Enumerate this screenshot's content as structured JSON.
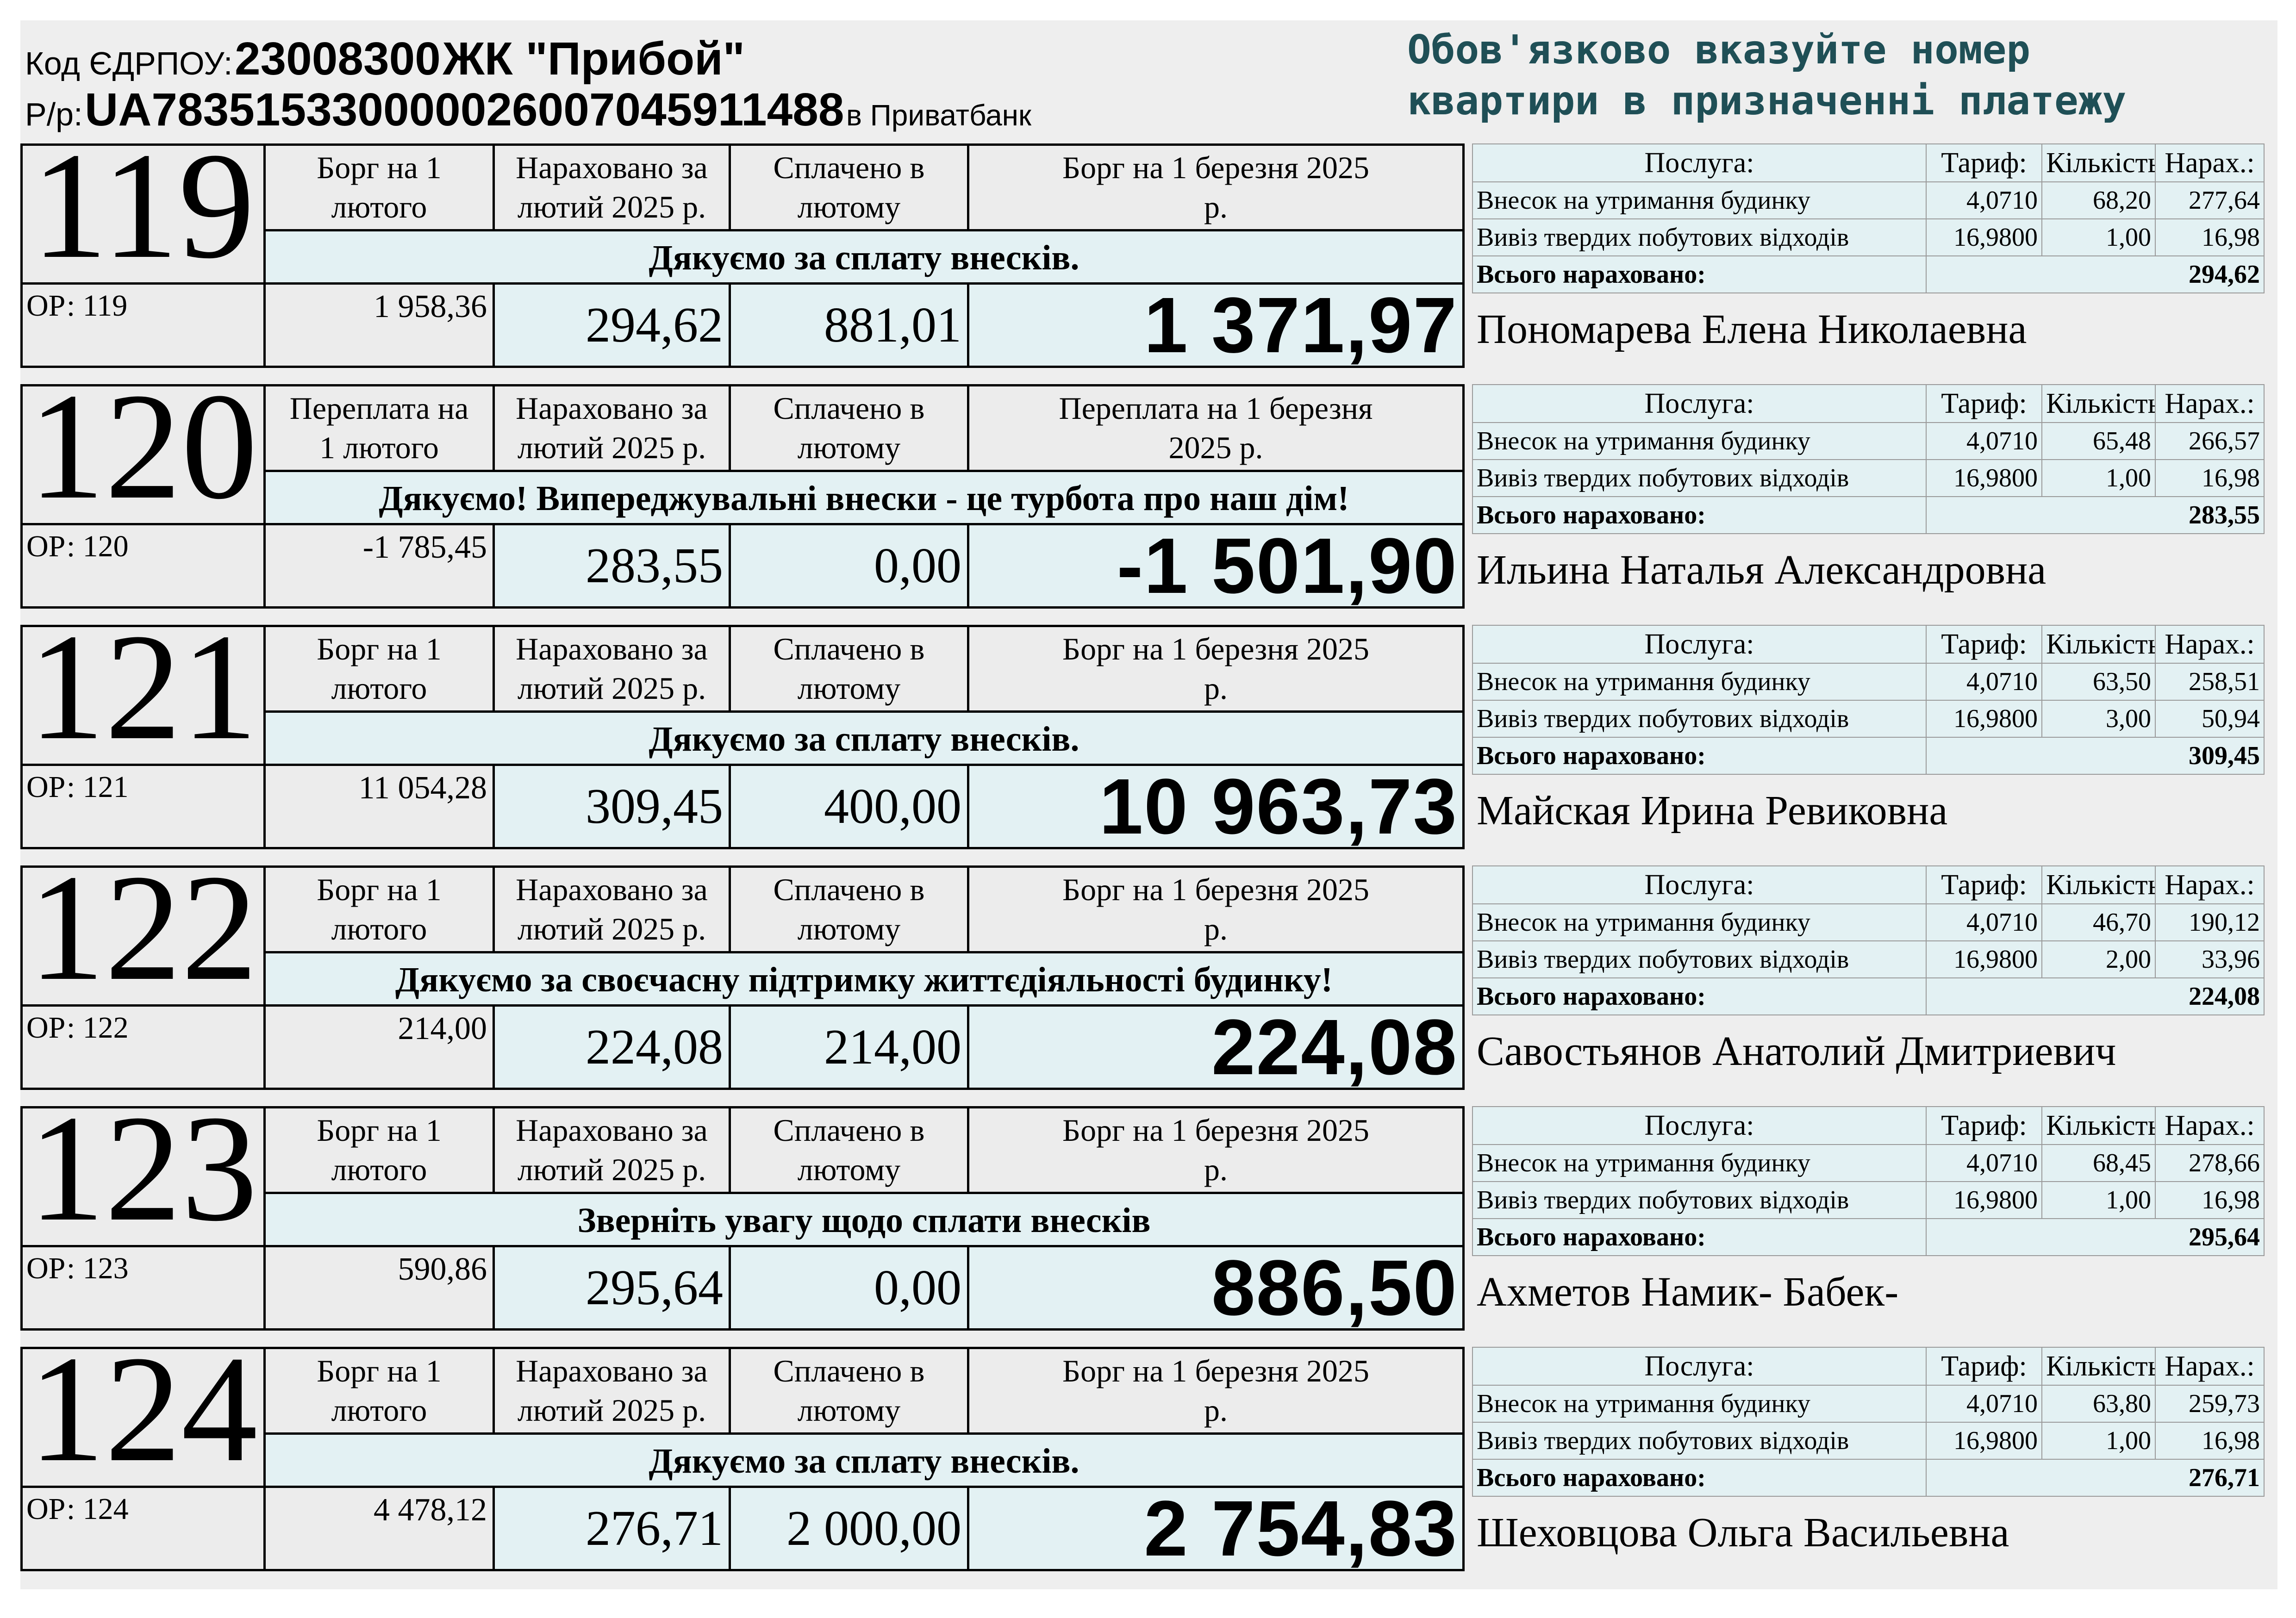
{
  "header": {
    "code_label": "Код ЄДРПОУ:",
    "code_value": "23008300",
    "org_name": "ЖК \"Прибой\"",
    "account_label": "Р/р:",
    "account_value": "UA783515330000026007045911488",
    "bank": "в Приватбанк",
    "notice_line1": "Обов'язково вказуйте номер",
    "notice_line2": "квартири в призначенні платежу"
  },
  "columns": {
    "charged": "Нараховано за лютий 2025 р.",
    "paid": "Сплачено в лютому"
  },
  "services_header": {
    "service": "Послуга:",
    "tariff": "Тариф:",
    "quantity": "Кількість:",
    "charge": "Нарах.:",
    "total_label": "Всього нараховано:"
  },
  "apartments": [
    {
      "number": "119",
      "op": "ОР: 119",
      "start_label": "Борг на 1 лютого",
      "end_label": "Борг на 1 березня 2025 р.",
      "message": "Дякуємо за сплату внесків.",
      "start_balance": "1 958,36",
      "charged": "294,62",
      "paid": "881,01",
      "end_balance": "1 371,97",
      "services": [
        {
          "name": "Внесок на утримання будинку",
          "tariff": "4,0710",
          "qty": "68,20",
          "sum": "277,64"
        },
        {
          "name": "Вивіз твердих побутових відходів",
          "tariff": "16,9800",
          "qty": "1,00",
          "sum": "16,98"
        }
      ],
      "total": "294,62",
      "owner": "Пономарева Елена Николаевна"
    },
    {
      "number": "120",
      "op": "ОР: 120",
      "start_label": "Переплата на 1 лютого",
      "end_label": "Переплата на 1 березня 2025 р.",
      "message": "Дякуємо! Випереджувальні внески - це турбота про наш дім!",
      "start_balance": "-1 785,45",
      "charged": "283,55",
      "paid": "0,00",
      "end_balance": "-1 501,90",
      "services": [
        {
          "name": "Внесок на утримання будинку",
          "tariff": "4,0710",
          "qty": "65,48",
          "sum": "266,57"
        },
        {
          "name": "Вивіз твердих побутових відходів",
          "tariff": "16,9800",
          "qty": "1,00",
          "sum": "16,98"
        }
      ],
      "total": "283,55",
      "owner": "Ильина Наталья Александровна"
    },
    {
      "number": "121",
      "op": "ОР: 121",
      "start_label": "Борг на 1 лютого",
      "end_label": "Борг на 1 березня 2025 р.",
      "message": "Дякуємо за сплату внесків.",
      "start_balance": "11 054,28",
      "charged": "309,45",
      "paid": "400,00",
      "end_balance": "10 963,73",
      "services": [
        {
          "name": "Внесок на утримання будинку",
          "tariff": "4,0710",
          "qty": "63,50",
          "sum": "258,51"
        },
        {
          "name": "Вивіз твердих побутових відходів",
          "tariff": "16,9800",
          "qty": "3,00",
          "sum": "50,94"
        }
      ],
      "total": "309,45",
      "owner": "Майская Ирина Ревиковна"
    },
    {
      "number": "122",
      "op": "ОР: 122",
      "start_label": "Борг на 1 лютого",
      "end_label": "Борг на 1 березня 2025 р.",
      "message": "Дякуємо за своєчасну підтримку життєдіяльності будинку!",
      "start_balance": "214,00",
      "charged": "224,08",
      "paid": "214,00",
      "end_balance": "224,08",
      "services": [
        {
          "name": "Внесок на утримання будинку",
          "tariff": "4,0710",
          "qty": "46,70",
          "sum": "190,12"
        },
        {
          "name": "Вивіз твердих побутових відходів",
          "tariff": "16,9800",
          "qty": "2,00",
          "sum": "33,96"
        }
      ],
      "total": "224,08",
      "owner": "Савостьянов Анатолий Дмитриевич"
    },
    {
      "number": "123",
      "op": "ОР: 123",
      "start_label": "Борг на 1 лютого",
      "end_label": "Борг на 1 березня 2025 р.",
      "message": "Зверніть увагу щодо сплати внесків",
      "start_balance": "590,86",
      "charged": "295,64",
      "paid": "0,00",
      "end_balance": "886,50",
      "services": [
        {
          "name": "Внесок на утримання будинку",
          "tariff": "4,0710",
          "qty": "68,45",
          "sum": "278,66"
        },
        {
          "name": "Вивіз твердих побутових відходів",
          "tariff": "16,9800",
          "qty": "1,00",
          "sum": "16,98"
        }
      ],
      "total": "295,64",
      "owner": "Ахметов Намик- Бабек-"
    },
    {
      "number": "124",
      "op": "ОР: 124",
      "start_label": "Борг на 1 лютого",
      "end_label": "Борг на 1 березня 2025 р.",
      "message": "Дякуємо за сплату внесків.",
      "start_balance": "4 478,12",
      "charged": "276,71",
      "paid": "2 000,00",
      "end_balance": "2 754,83",
      "services": [
        {
          "name": "Внесок на утримання будинку",
          "tariff": "4,0710",
          "qty": "63,80",
          "sum": "259,73"
        },
        {
          "name": "Вивіз твердих побутових відходів",
          "tariff": "16,9800",
          "qty": "1,00",
          "sum": "16,98"
        }
      ],
      "total": "276,71",
      "owner": "Шеховцова Ольга Васильевна"
    }
  ]
}
